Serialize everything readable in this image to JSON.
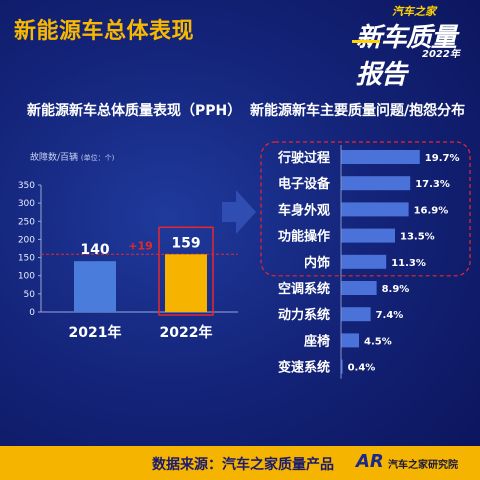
{
  "page_title": "新能源车总体表现",
  "badge": {
    "brand": "汽车之家",
    "title": "新车质量报告",
    "year": "2022年"
  },
  "footer": {
    "source": "数据来源：汽车之家质量产品",
    "logo": "AR",
    "institute": "汽车之家研究院"
  },
  "chart_data": [
    {
      "type": "bar",
      "title": "新能源新车总体质量表现（PPH）",
      "ylabel": "故障数/百辆",
      "ylabel_unit": "(单位：个)",
      "categories": [
        "2021年",
        "2022年"
      ],
      "values": [
        140,
        159
      ],
      "data_labels": [
        "140",
        "159"
      ],
      "ylim": [
        0,
        350
      ],
      "yticks": [
        0,
        50,
        100,
        150,
        200,
        250,
        300,
        350
      ],
      "bar_colors": [
        "#4a7ddb",
        "#f6b400"
      ],
      "annotation": "+19",
      "annotation_color": "#e8282b",
      "highlight": "2022年"
    },
    {
      "type": "bar",
      "orientation": "horizontal",
      "title": "新能源新车主要质量问题/抱怨分布",
      "categories": [
        "行驶过程",
        "电子设备",
        "车身外观",
        "功能操作",
        "内饰",
        "空调系统",
        "动力系统",
        "座椅",
        "变速系统"
      ],
      "values": [
        19.7,
        17.3,
        16.9,
        13.5,
        11.3,
        8.9,
        7.4,
        4.5,
        0.4
      ],
      "data_labels": [
        "19.7%",
        "17.3%",
        "16.9%",
        "13.5%",
        "11.3%",
        "8.9%",
        "7.4%",
        "4.5%",
        "0.4%"
      ],
      "bar_color": "#4a72d8",
      "highlight_top": 5,
      "highlight_color": "#e8282b"
    }
  ]
}
